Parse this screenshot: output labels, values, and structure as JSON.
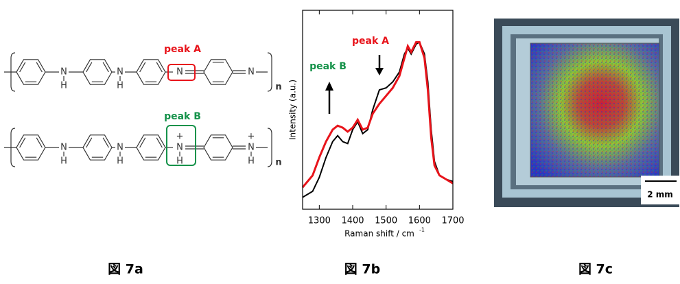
{
  "figure_a": {
    "peak_a": "peak A",
    "peak_b": "peak B",
    "N": "N",
    "H": "H",
    "n": "n",
    "plus": "+"
  },
  "chart_data": {
    "type": "line",
    "ylabel": "Intensity (a.u.)",
    "xlabel": "Raman shift / cm",
    "xlabel_sup": "-1",
    "annotations": [
      {
        "text": "peak A",
        "color": "#e8141b"
      },
      {
        "text": "peak B",
        "color": "#15924a"
      }
    ],
    "x": [
      1250,
      1280,
      1300,
      1320,
      1340,
      1355,
      1370,
      1385,
      1400,
      1415,
      1430,
      1445,
      1460,
      1480,
      1500,
      1520,
      1540,
      1555,
      1565,
      1575,
      1590,
      1600,
      1615,
      1625,
      1635,
      1645,
      1660,
      1680,
      1700
    ],
    "series": [
      {
        "color": "#000000",
        "values": [
          0.06,
          0.09,
          0.16,
          0.26,
          0.34,
          0.37,
          0.34,
          0.33,
          0.4,
          0.44,
          0.38,
          0.4,
          0.5,
          0.6,
          0.61,
          0.64,
          0.69,
          0.78,
          0.81,
          0.78,
          0.83,
          0.84,
          0.78,
          0.64,
          0.4,
          0.24,
          0.17,
          0.15,
          0.14
        ]
      },
      {
        "color": "#e8141b",
        "values": [
          0.11,
          0.17,
          0.26,
          0.34,
          0.4,
          0.42,
          0.41,
          0.39,
          0.41,
          0.45,
          0.4,
          0.41,
          0.48,
          0.53,
          0.57,
          0.61,
          0.67,
          0.76,
          0.82,
          0.79,
          0.84,
          0.84,
          0.76,
          0.6,
          0.36,
          0.22,
          0.17,
          0.15,
          0.13
        ]
      }
    ],
    "xlim": [
      1250,
      1700
    ],
    "ylim": [
      0,
      1
    ],
    "xticks": [
      1300,
      1400,
      1500,
      1600,
      1700
    ]
  },
  "figure_c": {
    "scale_bar": "2 mm"
  },
  "captions": [
    "図 7a",
    "図 7b",
    "図 7c"
  ]
}
